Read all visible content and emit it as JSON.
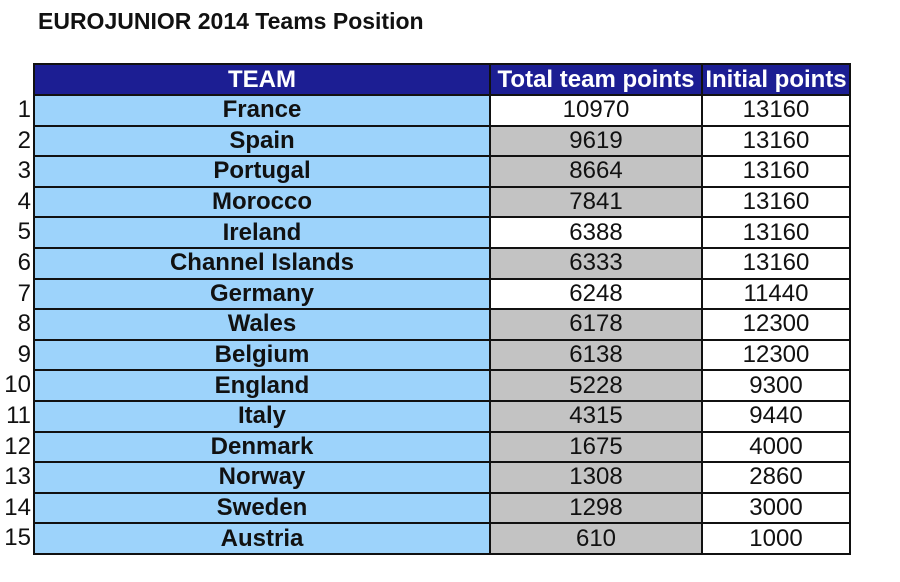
{
  "title": "EUROJUNIOR 2014 Teams Position",
  "headers": {
    "team": "TEAM",
    "total": "Total team points",
    "initial": "Initial points"
  },
  "colors": {
    "header_bg": "#1c1e93",
    "team_bg": "#9dd3fb",
    "total_grey_bg": "#c3c3c3",
    "total_white_bg": "#ffffff"
  },
  "rows": [
    {
      "rank": "1",
      "team": "France",
      "total": "10970",
      "initial": "13160",
      "total_shade": "white"
    },
    {
      "rank": "2",
      "team": "Spain",
      "total": "9619",
      "initial": "13160",
      "total_shade": "grey"
    },
    {
      "rank": "3",
      "team": "Portugal",
      "total": "8664",
      "initial": "13160",
      "total_shade": "grey"
    },
    {
      "rank": "4",
      "team": "Morocco",
      "total": "7841",
      "initial": "13160",
      "total_shade": "grey"
    },
    {
      "rank": "5",
      "team": "Ireland",
      "total": "6388",
      "initial": "13160",
      "total_shade": "white"
    },
    {
      "rank": "6",
      "team": "Channel Islands",
      "total": "6333",
      "initial": "13160",
      "total_shade": "grey"
    },
    {
      "rank": "7",
      "team": "Germany",
      "total": "6248",
      "initial": "11440",
      "total_shade": "white"
    },
    {
      "rank": "8",
      "team": "Wales",
      "total": "6178",
      "initial": "12300",
      "total_shade": "grey"
    },
    {
      "rank": "9",
      "team": "Belgium",
      "total": "6138",
      "initial": "12300",
      "total_shade": "grey"
    },
    {
      "rank": "10",
      "team": "England",
      "total": "5228",
      "initial": "9300",
      "total_shade": "grey"
    },
    {
      "rank": "11",
      "team": "Italy",
      "total": "4315",
      "initial": "9440",
      "total_shade": "grey"
    },
    {
      "rank": "12",
      "team": "Denmark",
      "total": "1675",
      "initial": "4000",
      "total_shade": "grey"
    },
    {
      "rank": "13",
      "team": "Norway",
      "total": "1308",
      "initial": "2860",
      "total_shade": "grey"
    },
    {
      "rank": "14",
      "team": "Sweden",
      "total": "1298",
      "initial": "3000",
      "total_shade": "grey"
    },
    {
      "rank": "15",
      "team": "Austria",
      "total": "610",
      "initial": "1000",
      "total_shade": "grey"
    }
  ]
}
